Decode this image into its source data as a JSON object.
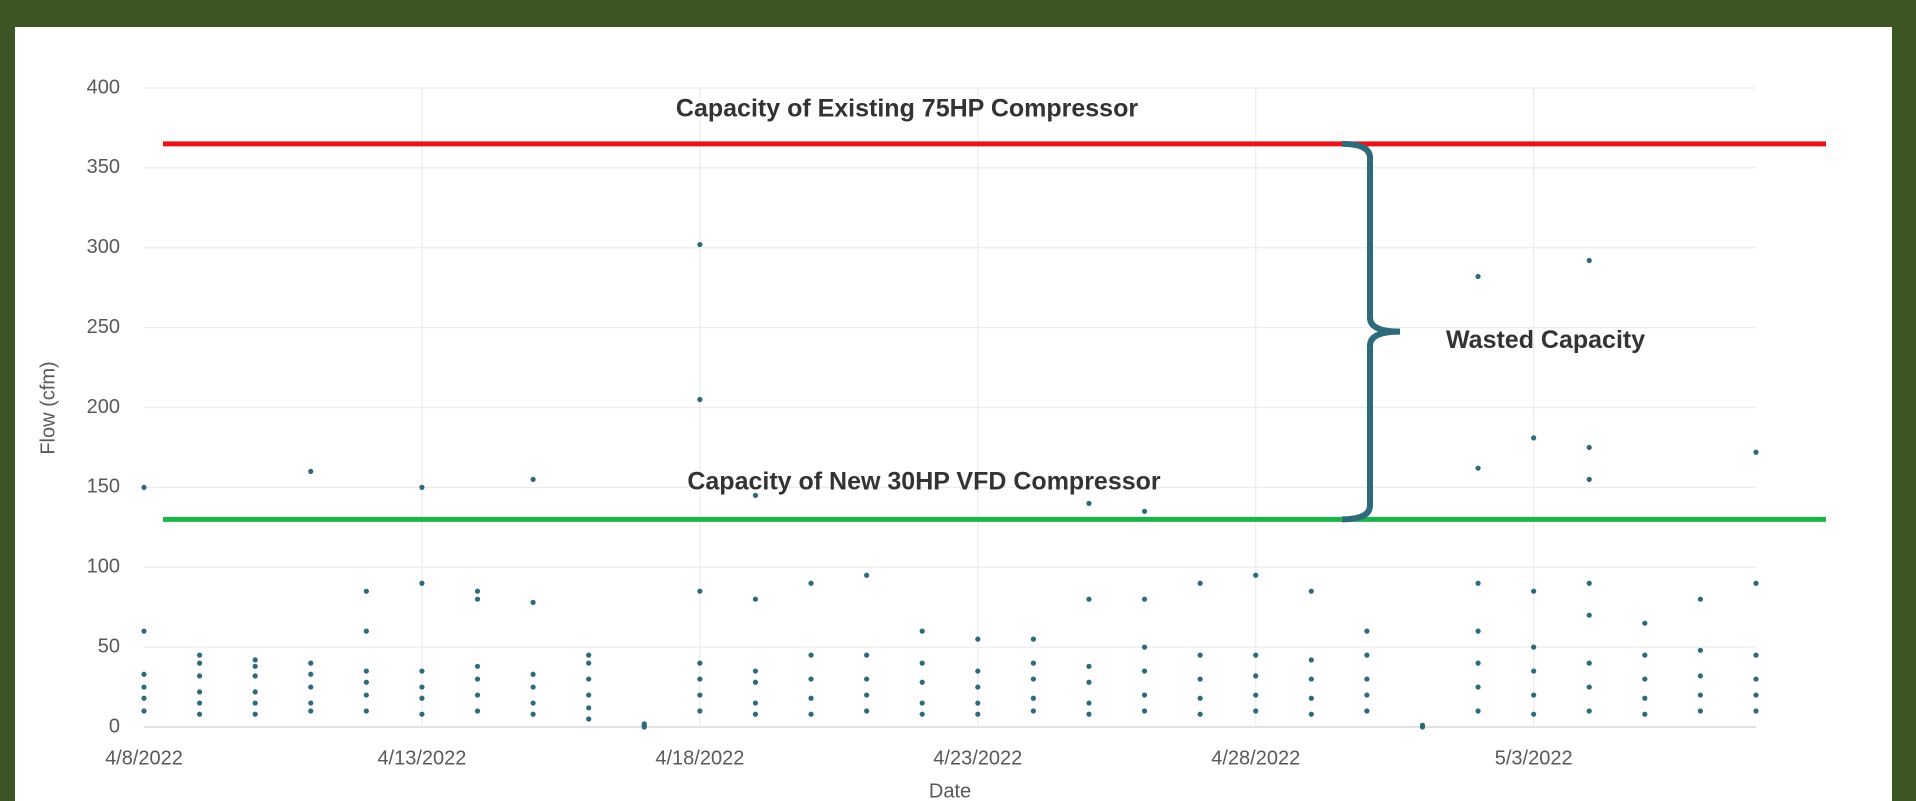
{
  "chart_data": {
    "type": "scatter",
    "x_label": "Date",
    "y_label": "Flow (cfm)",
    "x": [
      "4/8/2022",
      "4/8/2022",
      "4/8/2022",
      "4/8/2022",
      "4/8/2022",
      "4/8/2022",
      "4/9/2022",
      "4/9/2022",
      "4/9/2022",
      "4/9/2022",
      "4/9/2022",
      "4/9/2022",
      "4/10/2022",
      "4/10/2022",
      "4/10/2022",
      "4/10/2022",
      "4/10/2022",
      "4/10/2022",
      "4/11/2022",
      "4/11/2022",
      "4/11/2022",
      "4/11/2022",
      "4/11/2022",
      "4/11/2022",
      "4/12/2022",
      "4/12/2022",
      "4/12/2022",
      "4/12/2022",
      "4/12/2022",
      "4/12/2022",
      "4/13/2022",
      "4/13/2022",
      "4/13/2022",
      "4/13/2022",
      "4/13/2022",
      "4/13/2022",
      "4/14/2022",
      "4/14/2022",
      "4/14/2022",
      "4/14/2022",
      "4/14/2022",
      "4/14/2022",
      "4/15/2022",
      "4/15/2022",
      "4/15/2022",
      "4/15/2022",
      "4/15/2022",
      "4/15/2022",
      "4/16/2022",
      "4/16/2022",
      "4/16/2022",
      "4/16/2022",
      "4/16/2022",
      "4/16/2022",
      "4/17/2022",
      "4/17/2022",
      "4/17/2022",
      "4/17/2022",
      "4/18/2022",
      "4/18/2022",
      "4/18/2022",
      "4/18/2022",
      "4/18/2022",
      "4/18/2022",
      "4/18/2022",
      "4/19/2022",
      "4/19/2022",
      "4/19/2022",
      "4/19/2022",
      "4/19/2022",
      "4/19/2022",
      "4/20/2022",
      "4/20/2022",
      "4/20/2022",
      "4/20/2022",
      "4/20/2022",
      "4/21/2022",
      "4/21/2022",
      "4/21/2022",
      "4/21/2022",
      "4/21/2022",
      "4/22/2022",
      "4/22/2022",
      "4/22/2022",
      "4/22/2022",
      "4/22/2022",
      "4/23/2022",
      "4/23/2022",
      "4/23/2022",
      "4/23/2022",
      "4/23/2022",
      "4/24/2022",
      "4/24/2022",
      "4/24/2022",
      "4/24/2022",
      "4/24/2022",
      "4/25/2022",
      "4/25/2022",
      "4/25/2022",
      "4/25/2022",
      "4/25/2022",
      "4/25/2022",
      "4/26/2022",
      "4/26/2022",
      "4/26/2022",
      "4/26/2022",
      "4/26/2022",
      "4/26/2022",
      "4/27/2022",
      "4/27/2022",
      "4/27/2022",
      "4/27/2022",
      "4/27/2022",
      "4/28/2022",
      "4/28/2022",
      "4/28/2022",
      "4/28/2022",
      "4/28/2022",
      "4/29/2022",
      "4/29/2022",
      "4/29/2022",
      "4/29/2022",
      "4/29/2022",
      "4/30/2022",
      "4/30/2022",
      "4/30/2022",
      "4/30/2022",
      "4/30/2022",
      "5/1/2022",
      "5/1/2022",
      "5/1/2022",
      "5/2/2022",
      "5/2/2022",
      "5/2/2022",
      "5/2/2022",
      "5/2/2022",
      "5/2/2022",
      "5/2/2022",
      "5/3/2022",
      "5/3/2022",
      "5/3/2022",
      "5/3/2022",
      "5/3/2022",
      "5/3/2022",
      "5/4/2022",
      "5/4/2022",
      "5/4/2022",
      "5/4/2022",
      "5/4/2022",
      "5/4/2022",
      "5/4/2022",
      "5/4/2022",
      "5/5/2022",
      "5/5/2022",
      "5/5/2022",
      "5/5/2022",
      "5/5/2022",
      "5/6/2022",
      "5/6/2022",
      "5/6/2022",
      "5/6/2022",
      "5/6/2022",
      "5/7/2022",
      "5/7/2022",
      "5/7/2022",
      "5/7/2022",
      "5/7/2022",
      "5/7/2022"
    ],
    "values": [
      10,
      18,
      25,
      33,
      60,
      150,
      8,
      15,
      22,
      32,
      40,
      45,
      8,
      15,
      22,
      32,
      38,
      42,
      10,
      15,
      25,
      33,
      40,
      160,
      10,
      20,
      28,
      35,
      60,
      85,
      8,
      18,
      25,
      35,
      90,
      150,
      10,
      20,
      30,
      38,
      80,
      85,
      8,
      15,
      25,
      33,
      78,
      155,
      5,
      12,
      20,
      30,
      40,
      45,
      0,
      1,
      1,
      2,
      10,
      20,
      30,
      40,
      85,
      205,
      302,
      8,
      15,
      28,
      35,
      80,
      145,
      8,
      18,
      30,
      45,
      90,
      10,
      20,
      30,
      45,
      95,
      8,
      15,
      28,
      40,
      60,
      8,
      15,
      25,
      35,
      55,
      10,
      18,
      30,
      40,
      55,
      8,
      15,
      28,
      38,
      80,
      140,
      10,
      20,
      35,
      50,
      80,
      135,
      8,
      18,
      30,
      45,
      90,
      10,
      20,
      32,
      45,
      95,
      8,
      18,
      30,
      42,
      85,
      10,
      20,
      30,
      45,
      60,
      0,
      1,
      1,
      10,
      25,
      40,
      60,
      90,
      162,
      282,
      8,
      20,
      35,
      50,
      85,
      181,
      10,
      25,
      40,
      70,
      90,
      155,
      175,
      292,
      8,
      18,
      30,
      45,
      65,
      10,
      20,
      32,
      48,
      80,
      10,
      20,
      30,
      45,
      90,
      172
    ],
    "color": "#2e6b7a",
    "xlim": [
      "4/8/2022",
      "5/7/2022"
    ],
    "xticks": [
      "4/8/2022",
      "4/13/2022",
      "4/18/2022",
      "4/23/2022",
      "4/28/2022",
      "5/3/2022"
    ],
    "ylim": [
      0,
      400
    ],
    "yticks": [
      0,
      50,
      100,
      150,
      200,
      250,
      300,
      350,
      400
    ],
    "grid": true,
    "reference_lines": [
      {
        "value": 365,
        "label": "Capacity of Existing 75HP Compressor",
        "color": "#e8141c"
      },
      {
        "value": 130,
        "label": "Capacity of New 30HP VFD Compressor",
        "color": "#1db34a"
      }
    ],
    "bracket_label": "Wasted Capacity"
  }
}
